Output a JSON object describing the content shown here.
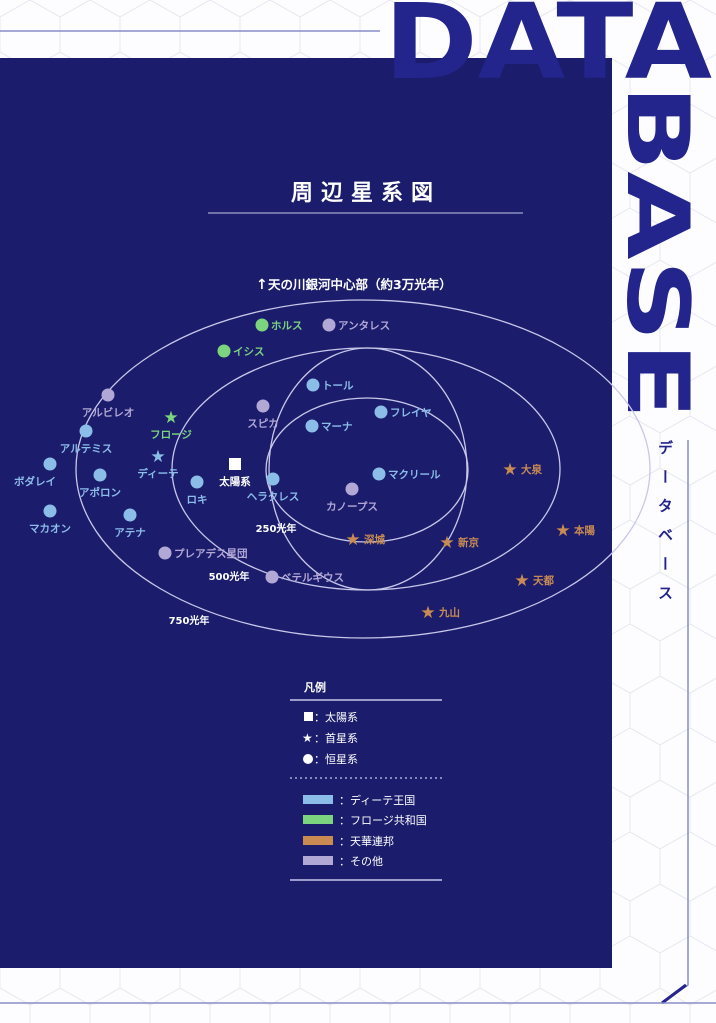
{
  "brand": {
    "word_top": "DATA",
    "word_side": "BASE",
    "subtitle_vertical": "データベース",
    "color": "#23248c"
  },
  "title": "周辺星系図",
  "galactic_center_label": "天の川銀河中心部（約3万光年）",
  "rings": [
    {
      "label": "250光年"
    },
    {
      "label": "500光年"
    },
    {
      "label": "750光年"
    }
  ],
  "colors": {
    "panel": "#1b1d6c",
    "diete": "#8cbde9",
    "frozi": "#7dd47f",
    "tenka": "#c98b52",
    "other": "#b2a8d6",
    "sun": "#ffffff",
    "lines": "#c8c7ea"
  },
  "systems": [
    {
      "name": "ホルス",
      "faction": "frozi",
      "type": "star-system"
    },
    {
      "name": "アンタレス",
      "faction": "other",
      "type": "star-system"
    },
    {
      "name": "イシス",
      "faction": "frozi",
      "type": "star-system"
    },
    {
      "name": "アルビレオ",
      "faction": "other",
      "type": "star-system"
    },
    {
      "name": "アルテミス",
      "faction": "diete",
      "type": "star-system"
    },
    {
      "name": "フロージ",
      "faction": "frozi",
      "type": "capital"
    },
    {
      "name": "ディーテ",
      "faction": "diete",
      "type": "capital"
    },
    {
      "name": "ボダレイ",
      "faction": "diete",
      "type": "star-system"
    },
    {
      "name": "アポロン",
      "faction": "diete",
      "type": "star-system"
    },
    {
      "name": "マカオン",
      "faction": "diete",
      "type": "star-system"
    },
    {
      "name": "アテナ",
      "faction": "diete",
      "type": "star-system"
    },
    {
      "name": "ロキ",
      "faction": "diete",
      "type": "star-system"
    },
    {
      "name": "太陽系",
      "faction": "sun",
      "type": "solar-system"
    },
    {
      "name": "ヘラクレス",
      "faction": "diete",
      "type": "star-system"
    },
    {
      "name": "スピカ",
      "faction": "other",
      "type": "star-system"
    },
    {
      "name": "トール",
      "faction": "diete",
      "type": "star-system"
    },
    {
      "name": "マーナ",
      "faction": "diete",
      "type": "star-system"
    },
    {
      "name": "フレイヤ",
      "faction": "diete",
      "type": "star-system"
    },
    {
      "name": "マクリール",
      "faction": "diete",
      "type": "star-system"
    },
    {
      "name": "カノープス",
      "faction": "other",
      "type": "star-system"
    },
    {
      "name": "プレアデス星団",
      "faction": "other",
      "type": "star-system"
    },
    {
      "name": "ベテルギウス",
      "faction": "other",
      "type": "star-system"
    },
    {
      "name": "深城",
      "faction": "tenka",
      "type": "capital"
    },
    {
      "name": "新京",
      "faction": "tenka",
      "type": "capital"
    },
    {
      "name": "大泉",
      "faction": "tenka",
      "type": "capital"
    },
    {
      "name": "本陽",
      "faction": "tenka",
      "type": "capital"
    },
    {
      "name": "天都",
      "faction": "tenka",
      "type": "capital"
    },
    {
      "name": "九山",
      "faction": "tenka",
      "type": "capital"
    }
  ],
  "legend": {
    "title": "凡例",
    "symbols": [
      {
        "icon": "square-icon",
        "label": "：太陽系"
      },
      {
        "icon": "star-icon",
        "label": "：首星系"
      },
      {
        "icon": "circle-icon",
        "label": "：恒星系"
      }
    ],
    "factions": [
      {
        "key": "diete",
        "label": "：ディーテ王国",
        "color": "#8cbde9"
      },
      {
        "key": "frozi",
        "label": "：フロージ共和国",
        "color": "#7dd47f"
      },
      {
        "key": "tenka",
        "label": "：天華連邦",
        "color": "#c98b52"
      },
      {
        "key": "other",
        "label": "：その他",
        "color": "#b2a8d6"
      }
    ]
  }
}
